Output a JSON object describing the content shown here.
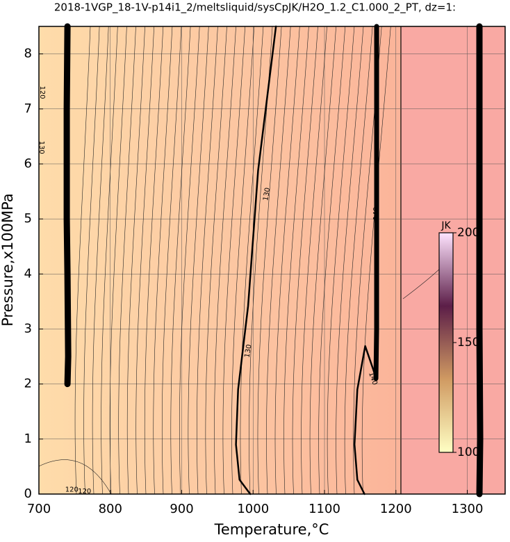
{
  "chart_data": {
    "type": "contour",
    "title": "2018-1VGP_18-1V-p14i1_2/meltsliquid/sysCpJK/H2O_1.2_C1.000_2_PT, dz=1:",
    "x_label": "Temperature,°C",
    "y_label": "Pressure,x100MPa",
    "xlim": [
      700,
      1353
    ],
    "ylim": [
      0,
      8.5
    ],
    "xticks": [
      700,
      800,
      900,
      1000,
      1100,
      1200,
      1300
    ],
    "yticks": [
      0,
      1,
      2,
      3,
      4,
      5,
      6,
      7,
      8
    ],
    "grid": true,
    "regions": [
      {
        "xlim": [
          700,
          1207
        ],
        "colors": [
          "#fedcaa",
          "#fbb49a"
        ]
      },
      {
        "xlim": [
          1207,
          1353
        ],
        "colors": [
          "#f9a9a3",
          "#f9a9a3"
        ]
      }
    ],
    "contours": [
      {
        "level": 130,
        "width": 2.5,
        "x": [
          1032,
          1007,
          993,
          979,
          976,
          981,
          996
        ],
        "y": [
          8.5,
          5.88,
          3.42,
          1.9,
          0.9,
          0.26,
          0
        ]
      },
      {
        "level": 140,
        "width": 2.5,
        "x": [
          1171,
          1157,
          1146,
          1142,
          1146,
          1156
        ],
        "y": [
          2.16,
          2.69,
          1.9,
          0.9,
          0.26,
          0
        ]
      },
      {
        "level": 140,
        "width": 9,
        "x": [
          740,
          739,
          739,
          740,
          741,
          740
        ],
        "y": [
          8.5,
          7,
          5,
          4,
          2.5,
          2.0
        ]
      },
      {
        "level": 140,
        "width": 7,
        "x": [
          1173,
          1173,
          1173,
          1173,
          1172
        ],
        "y": [
          8.5,
          7,
          5,
          3,
          2.1
        ]
      },
      {
        "level": 140,
        "width": 9,
        "x": [
          1317,
          1317,
          1317,
          1318,
          1317
        ],
        "y": [
          8.5,
          6,
          3,
          1,
          0
        ]
      }
    ],
    "contour_labels": [
      {
        "value": 130,
        "x": 1019,
        "y": 5.45,
        "angle": -80
      },
      {
        "value": 130,
        "x": 993,
        "y": 2.6,
        "angle": -80
      },
      {
        "value": 140,
        "x": 1168,
        "y": 2.1,
        "angle": 70
      },
      {
        "value": 140,
        "x": 1172,
        "y": 5.1,
        "angle": -90
      },
      {
        "value": 120,
        "x": 705,
        "y": 7.3,
        "angle": 90
      },
      {
        "value": 130,
        "x": 704,
        "y": 6.3,
        "angle": 90
      },
      {
        "value": 120,
        "x": 746,
        "y": 0.08,
        "angle": 0
      },
      {
        "value": 120,
        "x": 764,
        "y": 0.05,
        "angle": 0
      }
    ],
    "colorbar": {
      "label": "JK",
      "lim": [
        100,
        200
      ],
      "ticks": [
        100,
        150,
        200
      ],
      "colors": [
        "#ffffc4",
        "#d09a62",
        "#5c1e48",
        "#ffe4ff"
      ]
    }
  }
}
